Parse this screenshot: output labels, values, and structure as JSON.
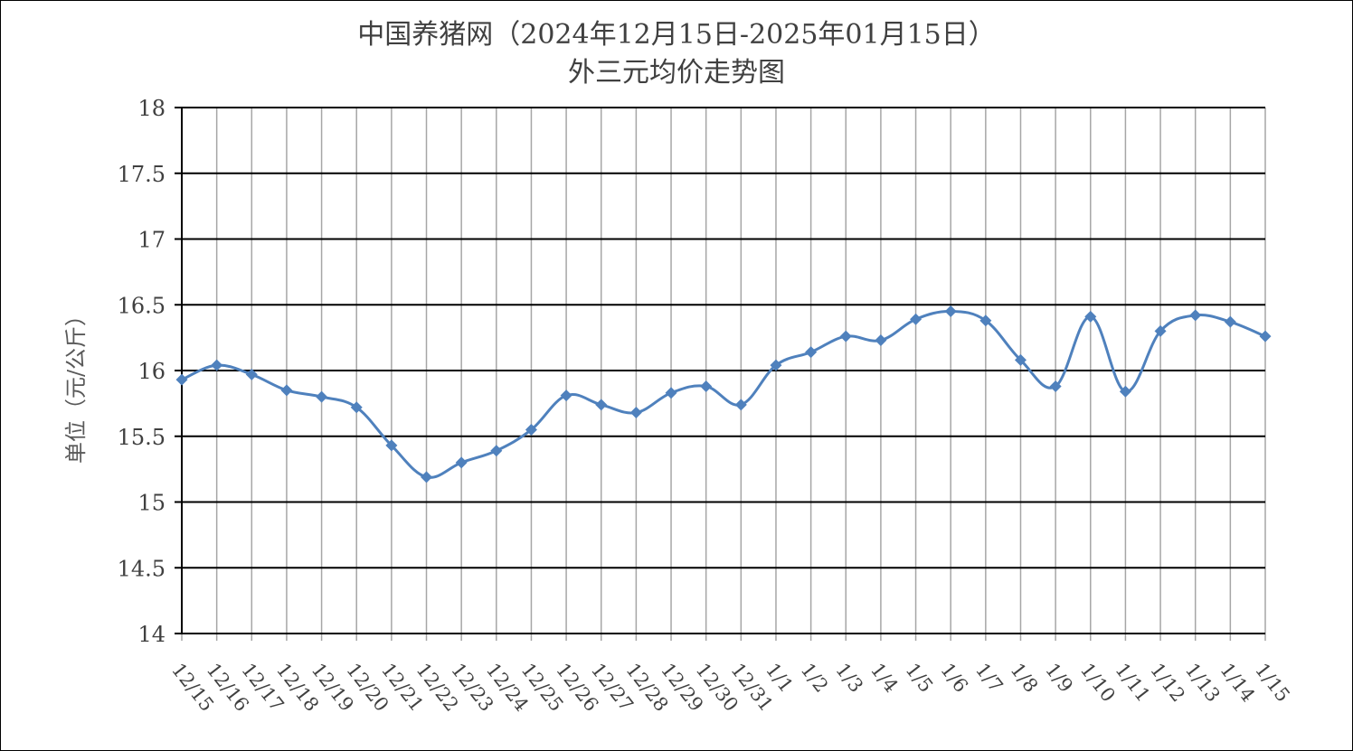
{
  "chart_data": {
    "type": "line",
    "title": "中国养猪网（2024年12月15日-2025年01月15日）",
    "subtitle": "外三元均价走势图",
    "ylabel": "单位（元/公斤）",
    "xlabel": "",
    "ylim": [
      14,
      18
    ],
    "yticks": [
      "14",
      "14.5",
      "15",
      "15.5",
      "16",
      "16.5",
      "17",
      "17.5",
      "18"
    ],
    "grid": true,
    "smooth": true,
    "line_color": "#4F81BD",
    "categories": [
      "12/15",
      "12/16",
      "12/17",
      "12/18",
      "12/19",
      "12/20",
      "12/21",
      "12/22",
      "12/23",
      "12/24",
      "12/25",
      "12/26",
      "12/27",
      "12/28",
      "12/29",
      "12/30",
      "12/31",
      "1/1",
      "1/2",
      "1/3",
      "1/4",
      "1/5",
      "1/6",
      "1/7",
      "1/8",
      "1/9",
      "1/10",
      "1/11",
      "1/12",
      "1/13",
      "1/14",
      "1/15"
    ],
    "series": [
      {
        "values": [
          15.93,
          16.04,
          15.97,
          15.85,
          15.8,
          15.72,
          15.43,
          15.19,
          15.3,
          15.39,
          15.55,
          15.81,
          15.74,
          15.68,
          15.83,
          15.88,
          15.74,
          16.04,
          16.14,
          16.26,
          16.23,
          16.39,
          16.45,
          16.38,
          16.08,
          15.88,
          16.41,
          15.84,
          16.3,
          16.42,
          16.37,
          16.26
        ]
      }
    ]
  }
}
